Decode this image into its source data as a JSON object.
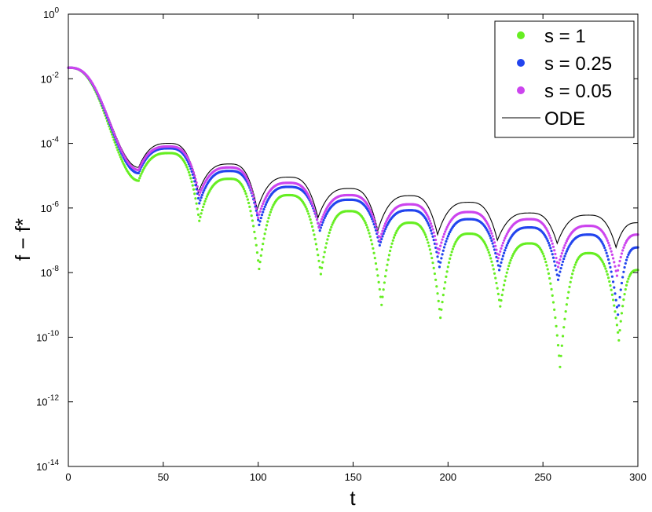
{
  "chart_data": {
    "type": "scatter",
    "title": "",
    "xlabel": "t",
    "ylabel": "f − f*",
    "xlim": [
      0,
      300
    ],
    "ylim_log10": [
      -14,
      0
    ],
    "y_scale": "log",
    "grid": false,
    "legend_position": "top-right",
    "x_ticks": [
      "0",
      "50",
      "100",
      "150",
      "200",
      "250",
      "300"
    ],
    "y_ticks": [
      {
        "base": "10",
        "exp": "0"
      },
      {
        "base": "10",
        "exp": "-2"
      },
      {
        "base": "10",
        "exp": "-4"
      },
      {
        "base": "10",
        "exp": "-6"
      },
      {
        "base": "10",
        "exp": "-8"
      },
      {
        "base": "10",
        "exp": "-10"
      },
      {
        "base": "10",
        "exp": "-12"
      },
      {
        "base": "10",
        "exp": "-14"
      }
    ],
    "series": [
      {
        "name": "s = 1",
        "style": "dots",
        "color": "#66ee22",
        "start_value": 0.022,
        "start_t": 0,
        "minima": [
          {
            "t": 37,
            "value": 7e-06
          },
          {
            "t": 69,
            "value": 4e-07
          },
          {
            "t": 100.5,
            "value": 1.3e-08
          },
          {
            "t": 133,
            "value": 9e-09
          },
          {
            "t": 165,
            "value": 1e-09
          },
          {
            "t": 196,
            "value": 4e-10
          },
          {
            "t": 227.5,
            "value": 9e-10
          },
          {
            "t": 259,
            "value": 1.2e-11
          },
          {
            "t": 290,
            "value": 8e-11
          }
        ],
        "maxima": [
          {
            "t": 53,
            "value": 5e-05
          },
          {
            "t": 85,
            "value": 8e-06
          },
          {
            "t": 116,
            "value": 2.5e-06
          },
          {
            "t": 148,
            "value": 8e-07
          },
          {
            "t": 180,
            "value": 3.5e-07
          },
          {
            "t": 211,
            "value": 1.6e-07
          },
          {
            "t": 243,
            "value": 8e-08
          },
          {
            "t": 274,
            "value": 4e-08
          }
        ],
        "end_value": 1.2e-08
      },
      {
        "name": "s = 0.25",
        "style": "dots",
        "color": "#2244ee",
        "start_value": 0.022,
        "start_t": 0,
        "minima": [
          {
            "t": 37,
            "value": 1.2e-05
          },
          {
            "t": 69,
            "value": 1.4e-06
          },
          {
            "t": 100.5,
            "value": 3e-07
          },
          {
            "t": 132.5,
            "value": 2e-07
          },
          {
            "t": 164,
            "value": 7e-08
          },
          {
            "t": 195.5,
            "value": 1.5e-08
          },
          {
            "t": 227,
            "value": 1.2e-08
          },
          {
            "t": 258,
            "value": 6e-09
          },
          {
            "t": 289.5,
            "value": 5e-10
          }
        ],
        "maxima": [
          {
            "t": 53,
            "value": 7e-05
          },
          {
            "t": 85,
            "value": 1.4e-05
          },
          {
            "t": 116,
            "value": 4.5e-06
          },
          {
            "t": 148,
            "value": 1.8e-06
          },
          {
            "t": 180,
            "value": 8.5e-07
          },
          {
            "t": 211,
            "value": 4.5e-07
          },
          {
            "t": 243,
            "value": 2.5e-07
          },
          {
            "t": 274,
            "value": 1.5e-07
          }
        ],
        "end_value": 6e-08
      },
      {
        "name": "s = 0.05",
        "style": "dots",
        "color": "#cc44ee",
        "start_value": 0.022,
        "start_t": 0,
        "minima": [
          {
            "t": 37,
            "value": 1.5e-05
          },
          {
            "t": 69,
            "value": 2.5e-06
          },
          {
            "t": 100,
            "value": 5e-07
          },
          {
            "t": 132,
            "value": 2.5e-07
          },
          {
            "t": 164,
            "value": 1e-07
          },
          {
            "t": 195,
            "value": 4e-08
          },
          {
            "t": 226.5,
            "value": 2.8e-08
          },
          {
            "t": 258,
            "value": 1.5e-08
          },
          {
            "t": 289,
            "value": 8e-09
          }
        ],
        "maxima": [
          {
            "t": 53,
            "value": 8e-05
          },
          {
            "t": 85,
            "value": 1.8e-05
          },
          {
            "t": 116,
            "value": 6e-06
          },
          {
            "t": 148,
            "value": 2.5e-06
          },
          {
            "t": 180,
            "value": 1.3e-06
          },
          {
            "t": 211,
            "value": 7.5e-07
          },
          {
            "t": 243,
            "value": 4.5e-07
          },
          {
            "t": 274,
            "value": 2.8e-07
          }
        ],
        "end_value": 1.5e-07
      },
      {
        "name": "ODE",
        "style": "line",
        "color": "#000000",
        "start_value": 0.022,
        "start_t": 0,
        "minima": [
          {
            "t": 37,
            "value": 1.8e-05
          },
          {
            "t": 68.5,
            "value": 3e-06
          },
          {
            "t": 99.5,
            "value": 9e-07
          },
          {
            "t": 131.5,
            "value": 5e-07
          },
          {
            "t": 163,
            "value": 2e-07
          },
          {
            "t": 194.5,
            "value": 1.5e-07
          },
          {
            "t": 226,
            "value": 1e-07
          },
          {
            "t": 257.5,
            "value": 8e-08
          },
          {
            "t": 288.5,
            "value": 6e-08
          }
        ],
        "maxima": [
          {
            "t": 53,
            "value": 0.0001
          },
          {
            "t": 85,
            "value": 2.3e-05
          },
          {
            "t": 116,
            "value": 9e-06
          },
          {
            "t": 148,
            "value": 4e-06
          },
          {
            "t": 180,
            "value": 2.4e-06
          },
          {
            "t": 211,
            "value": 1.5e-06
          },
          {
            "t": 243,
            "value": 7e-07
          },
          {
            "t": 274,
            "value": 6e-07
          }
        ],
        "end_value": 3.5e-07
      }
    ]
  }
}
